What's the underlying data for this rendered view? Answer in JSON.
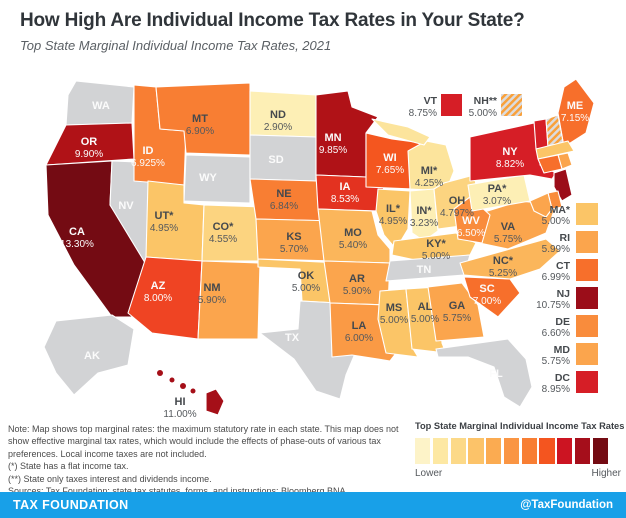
{
  "header": {
    "title": "How High Are Individual Income Tax Rates in Your State?",
    "subtitle": "Top State Marginal Individual Income Tax Rates, 2021"
  },
  "notes": {
    "body": "Note: Map shows top marginal rates: the maximum statutory rate in each state. This map does not show effective marginal tax rates, which would include the effects of phase-outs of various tax preferences. Local income taxes are not included.",
    "flat": "(*) State has a flat income tax.",
    "interest": "(**) State only taxes interest and dividends income.",
    "sources": "Sources: Tax Foundation; state tax statutes, forms, and instructions; Bloomberg BNA."
  },
  "legend": {
    "title": "Top State Marginal Individual Income Tax Rates",
    "lower": "Lower",
    "higher": "Higher",
    "colors": [
      "#fdf3c8",
      "#fde8a3",
      "#fcd988",
      "#fcc369",
      "#fbab51",
      "#fa9543",
      "#f87e33",
      "#f4551f",
      "#cc1422",
      "#a50e1b",
      "#740b13"
    ]
  },
  "footer": {
    "brand": "TAX FOUNDATION",
    "handle": "@TaxFoundation",
    "bg": "#18a0e8"
  },
  "map": {
    "no_tax_color": "#d2d3d5",
    "border_color": "#ffffff"
  },
  "chart_data": {
    "type": "choropleth",
    "geography": "United States",
    "title": "Top State Marginal Individual Income Tax Rates, 2021",
    "unit": "percent",
    "states": [
      {
        "abbr": "WA",
        "label": "WA",
        "rate": null,
        "rate_label": "",
        "color": "#d2d3d5",
        "text": "light",
        "mode": "map"
      },
      {
        "abbr": "OR",
        "label": "OR",
        "rate": 9.9,
        "rate_label": "9.90%",
        "color": "#b01217",
        "text": "light",
        "mode": "map"
      },
      {
        "abbr": "CA",
        "label": "CA",
        "rate": 13.3,
        "rate_label": "13.30%",
        "color": "#740b13",
        "text": "light",
        "mode": "map"
      },
      {
        "abbr": "NV",
        "label": "NV",
        "rate": null,
        "rate_label": "",
        "color": "#d2d3d5",
        "text": "light",
        "mode": "map"
      },
      {
        "abbr": "ID",
        "label": "ID",
        "rate": 6.925,
        "rate_label": "6.925%",
        "color": "#f87e33",
        "text": "light",
        "mode": "map"
      },
      {
        "abbr": "MT",
        "label": "MT",
        "rate": 6.9,
        "rate_label": "6.90%",
        "color": "#f87e33",
        "text": "dark",
        "mode": "map"
      },
      {
        "abbr": "WY",
        "label": "WY",
        "rate": null,
        "rate_label": "",
        "color": "#d2d3d5",
        "text": "light",
        "mode": "map"
      },
      {
        "abbr": "UT",
        "label": "UT*",
        "rate": 4.95,
        "rate_label": "4.95%",
        "color": "#fbc567",
        "text": "dark",
        "mode": "map"
      },
      {
        "abbr": "CO",
        "label": "CO*",
        "rate": 4.55,
        "rate_label": "4.55%",
        "color": "#fcd480",
        "text": "dark",
        "mode": "map"
      },
      {
        "abbr": "AZ",
        "label": "AZ",
        "rate": 8.0,
        "rate_label": "8.00%",
        "color": "#ef4423",
        "text": "light",
        "mode": "map"
      },
      {
        "abbr": "NM",
        "label": "NM",
        "rate": 5.9,
        "rate_label": "5.90%",
        "color": "#fba54d",
        "text": "dark",
        "mode": "map"
      },
      {
        "abbr": "ND",
        "label": "ND",
        "rate": 2.9,
        "rate_label": "2.90%",
        "color": "#fdefb5",
        "text": "dark",
        "mode": "map"
      },
      {
        "abbr": "SD",
        "label": "SD",
        "rate": null,
        "rate_label": "",
        "color": "#d2d3d5",
        "text": "light",
        "mode": "map"
      },
      {
        "abbr": "NE",
        "label": "NE",
        "rate": 6.84,
        "rate_label": "6.84%",
        "color": "#f87e33",
        "text": "dark",
        "mode": "map"
      },
      {
        "abbr": "KS",
        "label": "KS",
        "rate": 5.7,
        "rate_label": "5.70%",
        "color": "#fba54d",
        "text": "dark",
        "mode": "map"
      },
      {
        "abbr": "OK",
        "label": "OK",
        "rate": 5.0,
        "rate_label": "5.00%",
        "color": "#fbc567",
        "text": "dark",
        "mode": "map"
      },
      {
        "abbr": "TX",
        "label": "TX",
        "rate": null,
        "rate_label": "",
        "color": "#d2d3d5",
        "text": "light",
        "mode": "map"
      },
      {
        "abbr": "MN",
        "label": "MN",
        "rate": 9.85,
        "rate_label": "9.85%",
        "color": "#b01217",
        "text": "light",
        "mode": "map"
      },
      {
        "abbr": "IA",
        "label": "IA",
        "rate": 8.53,
        "rate_label": "8.53%",
        "color": "#e33220",
        "text": "light",
        "mode": "map"
      },
      {
        "abbr": "MO",
        "label": "MO",
        "rate": 5.4,
        "rate_label": "5.40%",
        "color": "#fbb65b",
        "text": "dark",
        "mode": "map"
      },
      {
        "abbr": "AR",
        "label": "AR",
        "rate": 5.9,
        "rate_label": "5.90%",
        "color": "#fba54d",
        "text": "dark",
        "mode": "map"
      },
      {
        "abbr": "LA",
        "label": "LA",
        "rate": 6.0,
        "rate_label": "6.00%",
        "color": "#fa9a45",
        "text": "dark",
        "mode": "map"
      },
      {
        "abbr": "WI",
        "label": "WI",
        "rate": 7.65,
        "rate_label": "7.65%",
        "color": "#f4561f",
        "text": "light",
        "mode": "map"
      },
      {
        "abbr": "MI",
        "label": "MI*",
        "rate": 4.25,
        "rate_label": "4.25%",
        "color": "#fce49c",
        "text": "dark",
        "mode": "map"
      },
      {
        "abbr": "IL",
        "label": "IL*",
        "rate": 4.95,
        "rate_label": "4.95%",
        "color": "#fbc567",
        "text": "dark",
        "mode": "map"
      },
      {
        "abbr": "IN",
        "label": "IN*",
        "rate": 3.23,
        "rate_label": "3.23%",
        "color": "#fdefb5",
        "text": "dark",
        "mode": "map"
      },
      {
        "abbr": "OH",
        "label": "OH",
        "rate": 4.797,
        "rate_label": "4.797%",
        "color": "#fcd480",
        "text": "dark",
        "mode": "map"
      },
      {
        "abbr": "KY",
        "label": "KY*",
        "rate": 5.0,
        "rate_label": "5.00%",
        "color": "#fbc567",
        "text": "dark",
        "mode": "map"
      },
      {
        "abbr": "TN",
        "label": "TN",
        "rate": null,
        "rate_label": "",
        "color": "#d2d3d5",
        "text": "light",
        "mode": "map"
      },
      {
        "abbr": "MS",
        "label": "MS",
        "rate": 5.0,
        "rate_label": "5.00%",
        "color": "#fbc567",
        "text": "dark",
        "mode": "map"
      },
      {
        "abbr": "AL",
        "label": "AL",
        "rate": 5.0,
        "rate_label": "5.00%",
        "color": "#fbc567",
        "text": "dark",
        "mode": "map"
      },
      {
        "abbr": "GA",
        "label": "GA",
        "rate": 5.75,
        "rate_label": "5.75%",
        "color": "#fba54d",
        "text": "dark",
        "mode": "map"
      },
      {
        "abbr": "FL",
        "label": "FL",
        "rate": null,
        "rate_label": "",
        "color": "#d2d3d5",
        "text": "light",
        "mode": "map"
      },
      {
        "abbr": "SC",
        "label": "SC",
        "rate": 7.0,
        "rate_label": "7.00%",
        "color": "#f76f2b",
        "text": "light",
        "mode": "map"
      },
      {
        "abbr": "NC",
        "label": "NC*",
        "rate": 5.25,
        "rate_label": "5.25%",
        "color": "#fbb65b",
        "text": "dark",
        "mode": "map"
      },
      {
        "abbr": "VA",
        "label": "VA",
        "rate": 5.75,
        "rate_label": "5.75%",
        "color": "#fba54d",
        "text": "dark",
        "mode": "map"
      },
      {
        "abbr": "WV",
        "label": "WV",
        "rate": 6.5,
        "rate_label": "6.50%",
        "color": "#f98c3c",
        "text": "light",
        "mode": "map"
      },
      {
        "abbr": "PA",
        "label": "PA*",
        "rate": 3.07,
        "rate_label": "3.07%",
        "color": "#fdefb5",
        "text": "dark",
        "mode": "map"
      },
      {
        "abbr": "NY",
        "label": "NY",
        "rate": 8.82,
        "rate_label": "8.82%",
        "color": "#d61e26",
        "text": "light",
        "mode": "map"
      },
      {
        "abbr": "ME",
        "label": "ME",
        "rate": 7.15,
        "rate_label": "7.15%",
        "color": "#f76f2b",
        "text": "light",
        "mode": "map"
      },
      {
        "abbr": "AK",
        "label": "AK",
        "rate": null,
        "rate_label": "",
        "color": "#d2d3d5",
        "text": "light",
        "mode": "map"
      },
      {
        "abbr": "HI",
        "label": "HI",
        "rate": 11.0,
        "rate_label": "11.00%",
        "color": "#a50f18",
        "text": "dark",
        "mode": "map"
      },
      {
        "abbr": "VT",
        "label": "VT",
        "rate": 8.75,
        "rate_label": "8.75%",
        "color": "#d61e26",
        "text": "dark",
        "mode": "top"
      },
      {
        "abbr": "NH",
        "label": "NH**",
        "rate": 5.0,
        "rate_label": "5.00%",
        "color": "#fbc567",
        "text": "dark",
        "mode": "top",
        "hatched": true
      },
      {
        "abbr": "MA",
        "label": "MA*",
        "rate": 5.0,
        "rate_label": "5.00%",
        "color": "#fbc567",
        "text": "dark",
        "mode": "right"
      },
      {
        "abbr": "RI",
        "label": "RI",
        "rate": 5.99,
        "rate_label": "5.99%",
        "color": "#fba54d",
        "text": "dark",
        "mode": "right"
      },
      {
        "abbr": "CT",
        "label": "CT",
        "rate": 6.99,
        "rate_label": "6.99%",
        "color": "#f76f2b",
        "text": "dark",
        "mode": "right"
      },
      {
        "abbr": "NJ",
        "label": "NJ",
        "rate": 10.75,
        "rate_label": "10.75%",
        "color": "#9b0d19",
        "text": "dark",
        "mode": "right"
      },
      {
        "abbr": "DE",
        "label": "DE",
        "rate": 6.6,
        "rate_label": "6.60%",
        "color": "#f98c3c",
        "text": "dark",
        "mode": "right"
      },
      {
        "abbr": "MD",
        "label": "MD",
        "rate": 5.75,
        "rate_label": "5.75%",
        "color": "#fba54d",
        "text": "dark",
        "mode": "right"
      },
      {
        "abbr": "DC",
        "label": "DC",
        "rate": 8.95,
        "rate_label": "8.95%",
        "color": "#d61e26",
        "text": "dark",
        "mode": "right"
      }
    ]
  }
}
